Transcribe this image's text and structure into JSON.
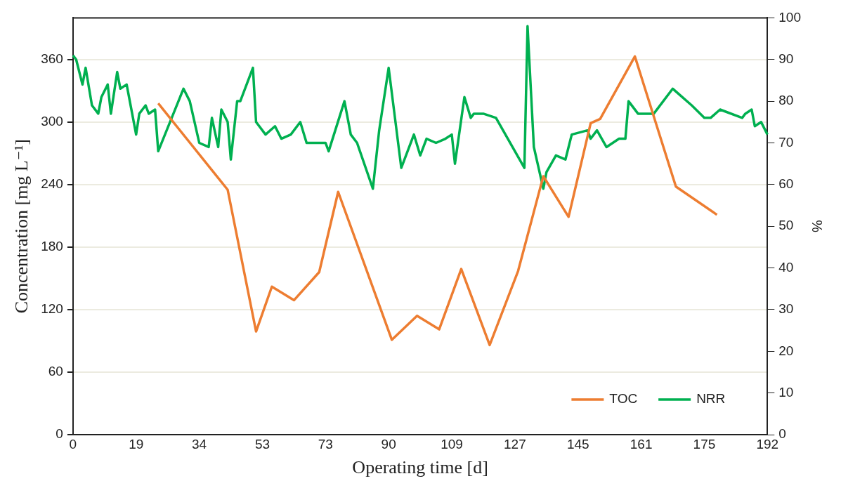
{
  "chart_data": {
    "type": "line",
    "xlabel": "Operating time [d]",
    "ylabel": "Concentration [mg L⁻¹]",
    "y2label": "%",
    "categories": [
      "0",
      null,
      null,
      null,
      null,
      null,
      null,
      null,
      null,
      null,
      null,
      null,
      null,
      null,
      null,
      null,
      null,
      null,
      null,
      null,
      "19",
      null,
      null,
      null,
      null,
      null,
      null,
      null,
      null,
      null,
      null,
      null,
      null,
      null,
      null,
      null,
      null,
      null,
      null,
      null,
      "34",
      null,
      null,
      null,
      null,
      null,
      null,
      null,
      null,
      null,
      null,
      null,
      null,
      null,
      null,
      null,
      null,
      null,
      null,
      null,
      "53",
      null,
      null,
      null,
      null,
      null,
      null,
      null,
      null,
      null,
      null,
      null,
      null,
      null,
      null,
      null,
      null,
      null,
      null,
      null,
      "73",
      null,
      null,
      null,
      null,
      null,
      null,
      null,
      null,
      null,
      null,
      null,
      null,
      null,
      null,
      null,
      null,
      null,
      null,
      null,
      "90",
      null,
      null,
      null,
      null,
      null,
      null,
      null,
      null,
      null,
      null,
      null,
      null,
      null,
      null,
      null,
      null,
      null,
      null,
      null,
      "109",
      null,
      null,
      null,
      null,
      null,
      null,
      null,
      null,
      null,
      null,
      null,
      null,
      null,
      null,
      null,
      null,
      null,
      null,
      null,
      "127",
      null,
      null,
      null,
      null,
      null,
      null,
      null,
      null,
      null,
      null,
      null,
      null,
      null,
      null,
      null,
      null,
      null,
      null,
      null,
      "145",
      null,
      null,
      null,
      null,
      null,
      null,
      null,
      null,
      null,
      null,
      null,
      null,
      null,
      null,
      null,
      null,
      null,
      null,
      null,
      "161",
      null,
      null,
      null,
      null,
      null,
      null,
      null,
      null,
      null,
      null,
      null,
      null,
      null,
      null,
      null,
      null,
      null,
      null,
      null,
      "175",
      null,
      null,
      null,
      null,
      null,
      null,
      null,
      null,
      null,
      null,
      null,
      null,
      null,
      null,
      null,
      null,
      null,
      null,
      null,
      "192"
    ],
    "series": [
      {
        "name": "TOC",
        "color": "#ed7d31",
        "values": [
          null,
          null,
          null,
          null,
          null,
          null,
          null,
          null,
          null,
          null,
          null,
          null,
          null,
          null,
          null,
          null,
          null,
          null,
          null,
          null,
          null,
          null,
          null,
          null,
          null,
          null,
          null,
          318,
          null,
          null,
          null,
          null,
          null,
          null,
          null,
          null,
          null,
          null,
          null,
          null,
          null,
          null,
          null,
          null,
          null,
          null,
          null,
          null,
          null,
          235,
          null,
          null,
          null,
          null,
          null,
          null,
          null,
          null,
          99,
          null,
          null,
          null,
          null,
          142,
          null,
          null,
          null,
          null,
          null,
          null,
          129,
          null,
          null,
          null,
          null,
          null,
          null,
          null,
          156,
          null,
          null,
          null,
          null,
          null,
          233,
          null,
          null,
          null,
          null,
          null,
          null,
          null,
          null,
          null,
          null,
          null,
          null,
          null,
          null,
          null,
          null,
          91,
          null,
          null,
          null,
          null,
          null,
          null,
          null,
          114,
          null,
          null,
          null,
          null,
          null,
          null,
          101,
          null,
          null,
          null,
          null,
          null,
          null,
          159,
          null,
          null,
          null,
          null,
          null,
          null,
          null,
          null,
          86,
          null,
          null,
          null,
          null,
          null,
          null,
          null,
          null,
          157,
          null,
          null,
          null,
          null,
          null,
          null,
          null,
          248,
          null,
          null,
          null,
          null,
          null,
          null,
          null,
          209,
          null,
          null,
          null,
          null,
          null,
          null,
          299,
          null,
          null,
          303,
          null,
          null,
          null,
          null,
          null,
          null,
          null,
          null,
          null,
          null,
          363,
          null,
          null,
          null,
          null,
          null,
          null,
          null,
          null,
          null,
          null,
          null,
          null,
          238,
          null,
          null,
          null,
          null,
          null,
          null,
          null,
          null,
          null,
          null,
          null,
          null,
          211,
          null,
          null,
          null,
          null,
          null,
          null,
          null,
          null,
          null,
          null,
          null,
          null,
          null,
          null,
          null,
          null
        ]
      },
      {
        "name": "NRR",
        "color": "#00b050",
        "axis": "y2",
        "values": [
          91,
          90,
          null,
          84,
          88,
          null,
          79,
          null,
          77,
          81,
          null,
          84,
          77,
          null,
          87,
          83,
          null,
          84,
          null,
          null,
          72,
          77,
          null,
          79,
          77,
          null,
          78,
          68,
          null,
          null,
          null,
          null,
          null,
          null,
          null,
          83,
          null,
          80,
          null,
          null,
          70,
          null,
          null,
          69,
          76,
          null,
          69,
          78,
          null,
          75,
          66,
          null,
          80,
          80,
          null,
          null,
          null,
          88,
          75,
          null,
          null,
          72,
          null,
          null,
          74,
          null,
          71,
          null,
          null,
          72,
          null,
          null,
          75,
          null,
          70,
          null,
          null,
          null,
          null,
          null,
          70,
          68,
          null,
          null,
          null,
          null,
          80,
          null,
          72,
          null,
          70,
          null,
          null,
          null,
          null,
          59,
          null,
          73,
          null,
          null,
          88,
          null,
          null,
          null,
          64,
          null,
          null,
          null,
          72,
          null,
          67,
          null,
          71,
          null,
          null,
          70,
          null,
          null,
          71,
          null,
          72,
          65,
          null,
          null,
          81,
          null,
          76,
          77,
          null,
          null,
          77,
          null,
          null,
          null,
          76,
          null,
          null,
          null,
          null,
          null,
          null,
          null,
          null,
          64,
          98,
          null,
          69,
          null,
          null,
          59,
          63,
          null,
          null,
          67,
          null,
          null,
          66,
          null,
          72,
          null,
          null,
          null,
          null,
          73,
          71,
          null,
          73,
          null,
          null,
          69,
          null,
          null,
          null,
          71,
          null,
          71,
          80,
          null,
          null,
          77,
          null,
          null,
          null,
          null,
          77,
          null,
          null,
          null,
          null,
          null,
          83,
          null,
          null,
          null,
          null,
          null,
          79,
          null,
          null,
          null,
          76,
          null,
          76,
          null,
          null,
          78,
          null,
          null,
          null,
          null,
          null,
          null,
          76,
          77,
          null,
          78,
          74,
          null,
          75,
          null,
          72
        ]
      }
    ],
    "ylim": [
      0,
      400
    ],
    "yticks": [
      0,
      60,
      120,
      180,
      240,
      300,
      360
    ],
    "y2lim": [
      0,
      100
    ],
    "y2ticks": [
      0,
      10,
      20,
      30,
      40,
      50,
      60,
      70,
      80,
      90,
      100
    ],
    "grid": "y",
    "legend": "bottom right",
    "marker": "none",
    "line_style": "solid"
  }
}
